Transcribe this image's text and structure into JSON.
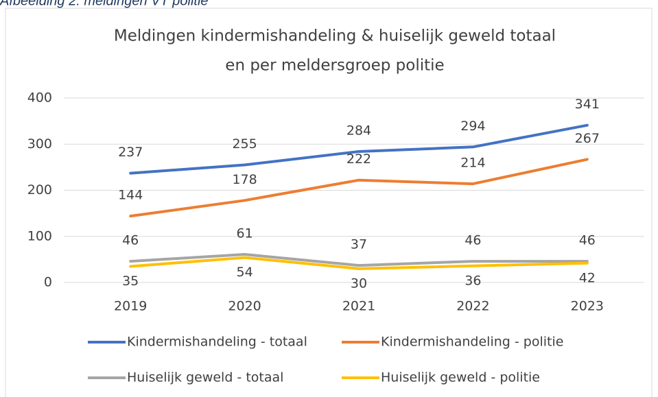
{
  "caption": "Afbeelding 2: meldingen VT politie",
  "chart_data": {
    "type": "line",
    "title": [
      "Meldingen kindermishandeling & huiselijk geweld totaal",
      "en per meldersgroep politie"
    ],
    "categories": [
      "2019",
      "2020",
      "2021",
      "2022",
      "2023"
    ],
    "series": [
      {
        "name": "Kindermishandeling - totaal",
        "color": "#4472c4",
        "values": [
          237,
          255,
          284,
          294,
          341
        ]
      },
      {
        "name": "Kindermishandeling - politie",
        "color": "#ed7d31",
        "values": [
          144,
          178,
          222,
          214,
          267
        ]
      },
      {
        "name": "Huiselijk geweld - totaal",
        "color": "#a5a5a5",
        "values": [
          46,
          61,
          37,
          46,
          46
        ]
      },
      {
        "name": "Huiselijk geweld - politie",
        "color": "#ffc000",
        "values": [
          35,
          54,
          30,
          36,
          42
        ]
      }
    ],
    "ylim": [
      0,
      400
    ],
    "yticks": [
      0,
      100,
      200,
      300,
      400
    ],
    "grid": true,
    "legend": "bottom"
  }
}
